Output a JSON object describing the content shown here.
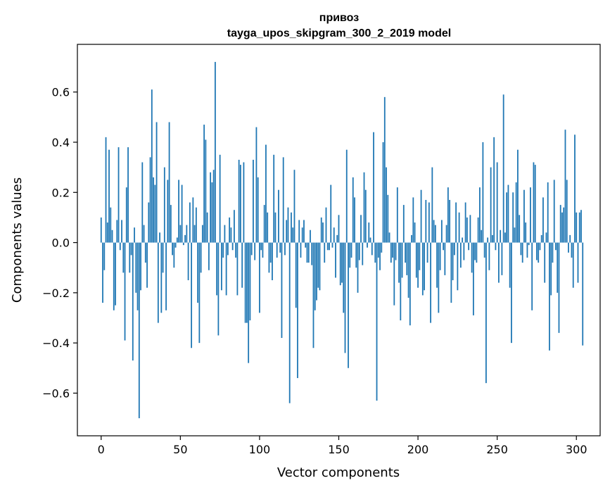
{
  "chart_data": {
    "type": "bar",
    "title_line1": "привоз",
    "title_line2": "tayga_upos_skipgram_300_2_2019 model",
    "xlabel": "Vector components",
    "ylabel": "Components values",
    "xlim": [
      -15,
      315
    ],
    "ylim": [
      -0.77,
      0.79
    ],
    "xticks": [
      0,
      50,
      100,
      150,
      200,
      250,
      300
    ],
    "xtick_labels": [
      "0",
      "50",
      "100",
      "150",
      "200",
      "250",
      "300"
    ],
    "yticks": [
      -0.6,
      -0.4,
      -0.2,
      0.0,
      0.2,
      0.4,
      0.6
    ],
    "ytick_labels": [
      "−0.6",
      "−0.4",
      "−0.2",
      "0.0",
      "0.2",
      "0.4",
      "0.6"
    ],
    "bar_color": "#1f77b4",
    "values": [
      0.1,
      -0.24,
      -0.11,
      0.42,
      0.08,
      0.37,
      0.14,
      0.05,
      -0.27,
      -0.25,
      0.09,
      0.38,
      -0.03,
      0.09,
      -0.12,
      -0.39,
      0.22,
      0.38,
      -0.12,
      -0.05,
      -0.47,
      0.06,
      -0.2,
      -0.27,
      -0.7,
      -0.19,
      0.32,
      0.07,
      -0.08,
      -0.18,
      0.16,
      0.34,
      0.61,
      0.26,
      0.23,
      0.48,
      -0.32,
      0.04,
      -0.28,
      -0.12,
      0.3,
      -0.27,
      0.25,
      0.48,
      0.15,
      -0.05,
      -0.1,
      -0.02,
      0.02,
      0.25,
      0.07,
      0.23,
      -0.01,
      0.03,
      0.07,
      -0.15,
      0.16,
      -0.42,
      0.18,
      0.07,
      0.14,
      -0.24,
      -0.4,
      -0.12,
      0.07,
      0.47,
      0.41,
      0.12,
      -0.11,
      0.28,
      0.24,
      0.29,
      0.72,
      -0.21,
      -0.37,
      0.35,
      -0.19,
      -0.06,
      0.07,
      -0.21,
      -0.05,
      0.1,
      0.06,
      -0.03,
      0.13,
      -0.06,
      -0.21,
      0.33,
      0.31,
      -0.18,
      0.32,
      -0.32,
      -0.32,
      -0.48,
      -0.31,
      -0.05,
      0.33,
      -0.07,
      0.46,
      0.26,
      -0.28,
      -0.03,
      -0.06,
      0.15,
      0.39,
      0.12,
      -0.12,
      -0.08,
      -0.15,
      0.35,
      0.12,
      -0.06,
      0.21,
      -0.04,
      -0.38,
      0.34,
      -0.05,
      0.09,
      0.14,
      -0.64,
      0.12,
      0.06,
      0.29,
      -0.26,
      -0.54,
      0.09,
      -0.06,
      0.06,
      0.09,
      -0.02,
      -0.08,
      -0.08,
      0.05,
      -0.09,
      -0.42,
      -0.27,
      -0.23,
      -0.18,
      -0.19,
      0.1,
      0.08,
      -0.08,
      0.14,
      -0.03,
      -0.03,
      0.23,
      -0.02,
      0.06,
      -0.14,
      0.03,
      0.11,
      -0.17,
      -0.16,
      -0.28,
      -0.44,
      0.37,
      -0.5,
      -0.1,
      -0.06,
      0.26,
      0.18,
      -0.1,
      -0.2,
      -0.07,
      0.11,
      -0.09,
      0.28,
      0.21,
      -0.02,
      0.08,
      0.02,
      -0.05,
      0.44,
      -0.08,
      -0.63,
      -0.06,
      -0.11,
      -0.04,
      0.4,
      0.58,
      0.3,
      0.19,
      0.04,
      -0.08,
      -0.06,
      -0.25,
      -0.07,
      0.22,
      -0.16,
      -0.31,
      -0.14,
      0.15,
      -0.08,
      -0.13,
      -0.22,
      -0.33,
      0.03,
      0.18,
      0.08,
      -0.14,
      -0.18,
      -0.11,
      0.21,
      -0.21,
      -0.19,
      0.17,
      -0.08,
      0.16,
      -0.32,
      0.3,
      0.09,
      0.07,
      -0.18,
      -0.28,
      -0.11,
      0.09,
      -0.03,
      -0.13,
      0.07,
      0.22,
      0.17,
      -0.24,
      -0.15,
      -0.05,
      0.16,
      -0.19,
      0.12,
      -0.1,
      0.02,
      -0.07,
      0.16,
      0.1,
      -0.03,
      0.11,
      -0.12,
      -0.29,
      -0.07,
      -0.08,
      0.1,
      0.22,
      0.05,
      0.4,
      -0.06,
      -0.56,
      0.02,
      -0.11,
      0.3,
      0.03,
      0.42,
      -0.03,
      0.32,
      -0.16,
      0.05,
      -0.13,
      0.59,
      0.04,
      0.2,
      0.23,
      -0.18,
      -0.4,
      0.2,
      0.06,
      0.24,
      0.37,
      0.11,
      -0.05,
      -0.08,
      0.21,
      0.08,
      -0.06,
      -0.01,
      0.22,
      -0.27,
      0.32,
      0.31,
      -0.07,
      -0.08,
      -0.03,
      0.03,
      0.18,
      -0.16,
      0.04,
      0.24,
      -0.43,
      -0.21,
      -0.08,
      0.25,
      -0.03,
      -0.2,
      -0.36,
      0.15,
      0.12,
      0.14,
      0.45,
      0.25,
      -0.04,
      0.03,
      -0.06,
      -0.18,
      0.43,
      0.12,
      -0.16,
      0.12,
      0.13,
      -0.41
    ]
  }
}
